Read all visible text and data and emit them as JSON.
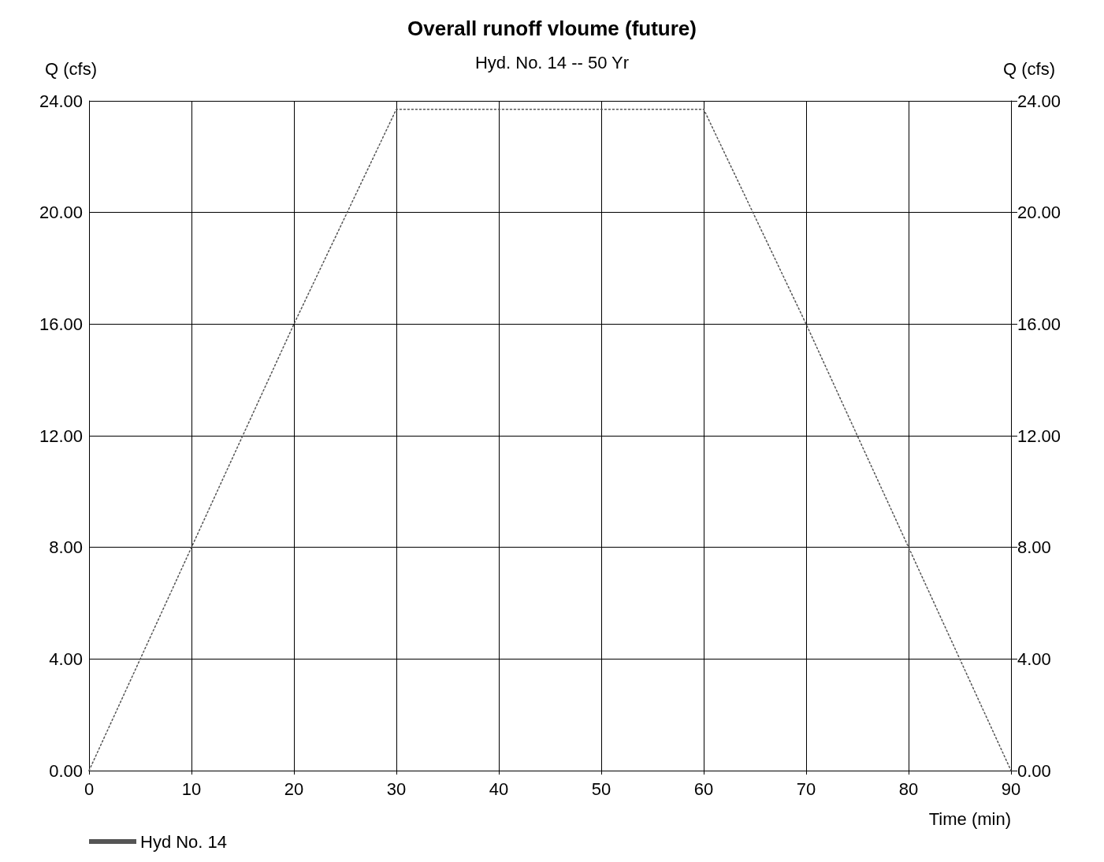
{
  "chart_data": {
    "type": "line",
    "title": "Overall runoff vloume (future)",
    "subtitle": "Hyd. No. 14 -- 50 Yr",
    "xlabel": "Time (min)",
    "ylabel": "Q (cfs)",
    "y2label": "Q (cfs)",
    "xlim": [
      0,
      90
    ],
    "xticks": [
      0,
      10,
      20,
      30,
      40,
      50,
      60,
      70,
      80,
      90
    ],
    "ylim": [
      0,
      24
    ],
    "yticks": [
      {
        "value": 0,
        "label": "0.00"
      },
      {
        "value": 4,
        "label": "4.00"
      },
      {
        "value": 8,
        "label": "8.00"
      },
      {
        "value": 12,
        "label": "12.00"
      },
      {
        "value": 16,
        "label": "16.00"
      },
      {
        "value": 20,
        "label": "20.00"
      },
      {
        "value": 24,
        "label": "24.00"
      }
    ],
    "y2lim": [
      0,
      24
    ],
    "y2ticks": [
      {
        "value": 0,
        "label": "0.00"
      },
      {
        "value": 4,
        "label": "4.00"
      },
      {
        "value": 8,
        "label": "8.00"
      },
      {
        "value": 12,
        "label": "12.00"
      },
      {
        "value": 16,
        "label": "16.00"
      },
      {
        "value": 20,
        "label": "20.00"
      },
      {
        "value": 24,
        "label": "24.00"
      }
    ],
    "series": [
      {
        "name": "Hyd No. 14",
        "color": "#555555",
        "x": [
          0,
          10,
          20,
          30,
          60,
          70,
          80,
          90
        ],
        "values": [
          0,
          8,
          16,
          23.7,
          23.7,
          16,
          8,
          0
        ]
      }
    ],
    "grid": true,
    "legend": "bottom left",
    "marker": "none",
    "line_style": "dotted"
  }
}
